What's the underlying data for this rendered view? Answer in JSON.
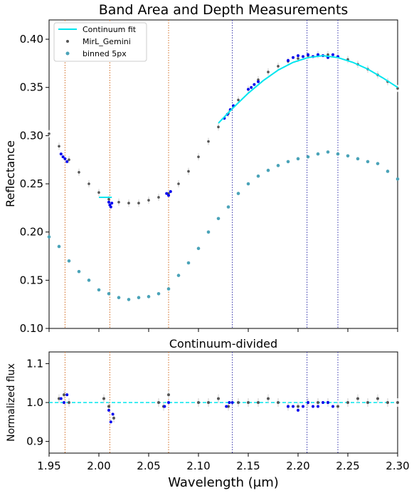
{
  "chart_data": [
    {
      "type": "scatter",
      "title": "Band Area and Depth Measurements",
      "xlabel": "",
      "ylabel": "Reflectance",
      "xlim": [
        1.95,
        2.3
      ],
      "ylim": [
        0.1,
        0.42
      ],
      "grid": false,
      "legend_position": "top-left",
      "x_ticks": [
        1.95,
        2.0,
        2.05,
        2.1,
        2.15,
        2.2,
        2.25,
        2.3
      ],
      "y_ticks": [
        "0.10",
        "0.15",
        "0.20",
        "0.25",
        "0.30",
        "0.35",
        "0.40"
      ],
      "legend": [
        "Continuum fit",
        "MirL_Gemini",
        "binned 5px"
      ],
      "colors": {
        "continuum": "#00e5ee",
        "data": "#555555",
        "binned": "#4aa3b8",
        "band_points": "#0000ee",
        "band_center": "#e0208a",
        "band_fit": "#3cb371",
        "band1_lines": "#d2691e",
        "band2_lines": "#3030aa"
      },
      "band_lines_1": [
        1.966,
        2.011,
        2.07
      ],
      "band_lines_2": [
        2.134,
        2.209,
        2.24
      ],
      "continuum_segments": [
        {
          "x": [
            2.0,
            2.013
          ],
          "y": [
            0.236,
            0.236
          ]
        },
        {
          "x": [
            2.12,
            2.135,
            2.15,
            2.165,
            2.18,
            2.195,
            2.21,
            2.225,
            2.24,
            2.255,
            2.27,
            2.285,
            2.3
          ],
          "y": [
            0.313,
            0.329,
            0.344,
            0.357,
            0.368,
            0.376,
            0.381,
            0.383,
            0.381,
            0.376,
            0.369,
            0.36,
            0.35
          ]
        }
      ],
      "series": [
        {
          "name": "MirL_Gemini",
          "x": [
            1.95,
            1.96,
            1.97,
            1.98,
            1.99,
            2.0,
            2.01,
            2.02,
            2.03,
            2.04,
            2.05,
            2.06,
            2.07,
            2.08,
            2.09,
            2.1,
            2.11,
            2.12,
            2.13,
            2.14,
            2.15,
            2.16,
            2.17,
            2.18,
            2.19,
            2.2,
            2.21,
            2.22,
            2.23,
            2.24,
            2.25,
            2.26,
            2.27,
            2.28,
            2.29,
            2.3
          ],
          "y": [
            0.302,
            0.289,
            0.275,
            0.262,
            0.25,
            0.241,
            0.234,
            0.231,
            0.23,
            0.23,
            0.233,
            0.236,
            0.24,
            0.25,
            0.263,
            0.278,
            0.294,
            0.309,
            0.323,
            0.337,
            0.348,
            0.358,
            0.366,
            0.372,
            0.377,
            0.38,
            0.383,
            0.384,
            0.384,
            0.382,
            0.379,
            0.374,
            0.369,
            0.363,
            0.356,
            0.349
          ]
        },
        {
          "name": "binned 5px",
          "x": [
            1.95,
            1.96,
            1.97,
            1.98,
            1.99,
            2.0,
            2.01,
            2.02,
            2.03,
            2.04,
            2.05,
            2.06,
            2.07,
            2.08,
            2.09,
            2.1,
            2.11,
            2.12,
            2.13,
            2.14,
            2.15,
            2.16,
            2.17,
            2.18,
            2.19,
            2.2,
            2.21,
            2.22,
            2.23,
            2.24,
            2.25,
            2.26,
            2.27,
            2.28,
            2.29,
            2.3
          ],
          "y": [
            0.195,
            0.185,
            0.17,
            0.159,
            0.15,
            0.14,
            0.136,
            0.132,
            0.13,
            0.132,
            0.133,
            0.136,
            0.141,
            0.155,
            0.168,
            0.183,
            0.2,
            0.214,
            0.226,
            0.24,
            0.25,
            0.258,
            0.264,
            0.269,
            0.273,
            0.276,
            0.278,
            0.281,
            0.283,
            0.281,
            0.279,
            0.276,
            0.273,
            0.271,
            0.263,
            0.255
          ]
        },
        {
          "name": "band points",
          "x": [
            1.962,
            1.964,
            1.966,
            1.968,
            2.01,
            2.011,
            2.012,
            2.013,
            2.068,
            2.07,
            2.072,
            2.126,
            2.129,
            2.132,
            2.135,
            2.15,
            2.153,
            2.156,
            2.16,
            2.19,
            2.195,
            2.2,
            2.205,
            2.21,
            2.215,
            2.22,
            2.225,
            2.23,
            2.235,
            2.24
          ],
          "y": [
            0.281,
            0.278,
            0.276,
            0.273,
            0.231,
            0.228,
            0.226,
            0.23,
            0.24,
            0.238,
            0.242,
            0.318,
            0.322,
            0.327,
            0.331,
            0.348,
            0.35,
            0.353,
            0.356,
            0.378,
            0.381,
            0.383,
            0.382,
            0.384,
            0.382,
            0.384,
            0.383,
            0.381,
            0.384,
            0.382
          ]
        }
      ]
    },
    {
      "type": "scatter",
      "title": "Continuum-divided",
      "xlabel": "Wavelength (μm)",
      "ylabel": "Normalized flux",
      "xlim": [
        1.95,
        2.3
      ],
      "ylim": [
        0.87,
        1.13
      ],
      "grid": false,
      "x_ticks": [
        "1.95",
        "2.00",
        "2.05",
        "2.10",
        "2.15",
        "2.20",
        "2.25",
        "2.30"
      ],
      "y_ticks": [
        "0.9",
        "1.0",
        "1.1"
      ],
      "reference_line": 1.0,
      "series": [
        {
          "name": "MirL_Gemini",
          "x": [
            1.96,
            1.965,
            1.97,
            2.005,
            2.01,
            2.015,
            2.06,
            2.065,
            2.07,
            2.1,
            2.11,
            2.12,
            2.13,
            2.14,
            2.15,
            2.16,
            2.17,
            2.18,
            2.19,
            2.2,
            2.21,
            2.22,
            2.23,
            2.24,
            2.25,
            2.26,
            2.27,
            2.28,
            2.29,
            2.3
          ],
          "y": [
            1.01,
            1.02,
            1.0,
            1.01,
            0.99,
            0.96,
            1.0,
            0.99,
            1.02,
            1.0,
            1.0,
            1.01,
            0.99,
            1.0,
            1.0,
            1.0,
            1.01,
            1.0,
            0.99,
            0.99,
            1.0,
            1.0,
            1.0,
            0.99,
            1.0,
            1.01,
            1.0,
            1.01,
            1.0,
            1.0
          ]
        },
        {
          "name": "band points",
          "x": [
            1.962,
            1.965,
            1.968,
            2.01,
            2.012,
            2.014,
            2.066,
            2.07,
            2.128,
            2.131,
            2.134,
            2.19,
            2.195,
            2.2,
            2.205,
            2.21,
            2.215,
            2.22,
            2.225,
            2.23,
            2.235
          ],
          "y": [
            1.01,
            1.0,
            1.02,
            0.98,
            0.95,
            0.97,
            0.99,
            1.0,
            0.99,
            1.0,
            1.0,
            0.99,
            0.99,
            0.98,
            0.99,
            1.0,
            0.99,
            0.99,
            1.0,
            1.0,
            0.99
          ]
        }
      ]
    }
  ]
}
